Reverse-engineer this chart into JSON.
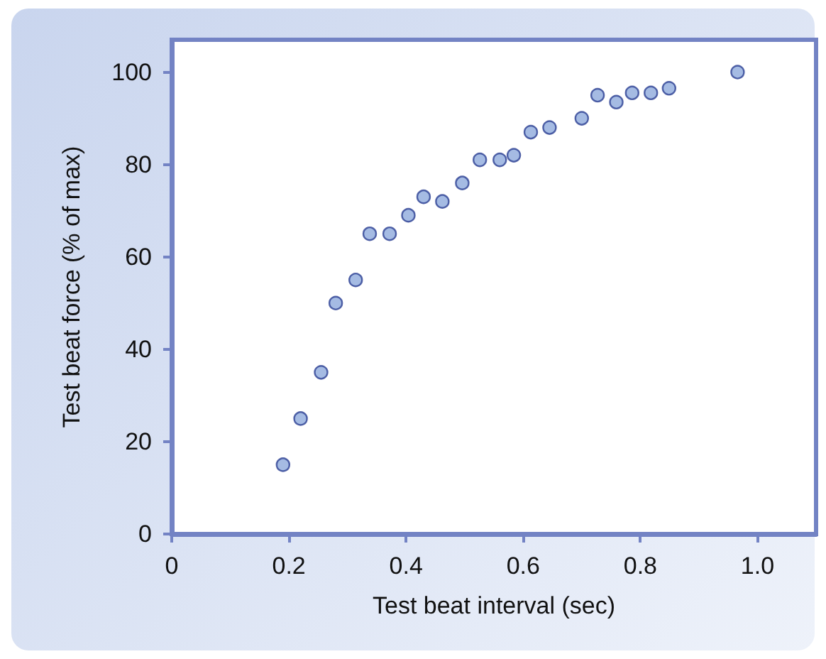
{
  "chart_data": {
    "type": "scatter",
    "xlabel": "Test beat interval (sec)",
    "ylabel": "Test beat force (% of max)",
    "x": [
      0.19,
      0.22,
      0.255,
      0.28,
      0.314,
      0.338,
      0.372,
      0.404,
      0.43,
      0.462,
      0.496,
      0.526,
      0.56,
      0.584,
      0.613,
      0.645,
      0.7,
      0.727,
      0.759,
      0.786,
      0.818,
      0.849,
      0.966
    ],
    "series": [
      {
        "color": "#8eaadc",
        "values": [
          15,
          25,
          35,
          50,
          55,
          65,
          65,
          69,
          73,
          72,
          76,
          81,
          81,
          82,
          87,
          88,
          90,
          95,
          93.5,
          95.5,
          95.5,
          96.5,
          100
        ]
      }
    ],
    "xlim": [
      0,
      1.1
    ],
    "xticks": [
      0,
      0.2,
      0.4,
      0.6,
      0.8,
      {
        "value": 1,
        "label": "1.0"
      }
    ],
    "ylim": [
      0,
      107
    ],
    "yticks": [
      0,
      20,
      40,
      60,
      80,
      100
    ],
    "grid": false,
    "marker": "circle"
  }
}
